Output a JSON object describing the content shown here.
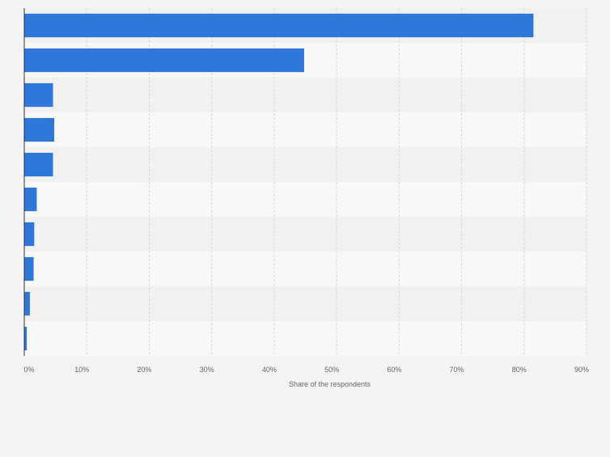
{
  "chart_data": {
    "type": "bar",
    "orientation": "horizontal",
    "categories": [
      "",
      "",
      "",
      "",
      "",
      "",
      "",
      "",
      "",
      ""
    ],
    "values": [
      81.5,
      44.8,
      4.6,
      4.8,
      4.6,
      2.0,
      1.6,
      1.5,
      0.9,
      0.4
    ],
    "title": "",
    "xlabel": "Share of the respondents",
    "ylabel": "",
    "xlim": [
      0,
      90
    ],
    "x_ticks": [
      "0%",
      "10%",
      "20%",
      "30%",
      "40%",
      "50%",
      "60%",
      "70%",
      "80%",
      "90%"
    ],
    "grid": true,
    "legend": "none"
  },
  "colors": {
    "bar": "#2f77d9",
    "background": "#f4f4f4",
    "plot_band_light": "#f8f8f8",
    "plot_band_dark": "#f1f1f1",
    "grid": "#d9d9d9",
    "axis": "#333333",
    "text": "#666666"
  }
}
